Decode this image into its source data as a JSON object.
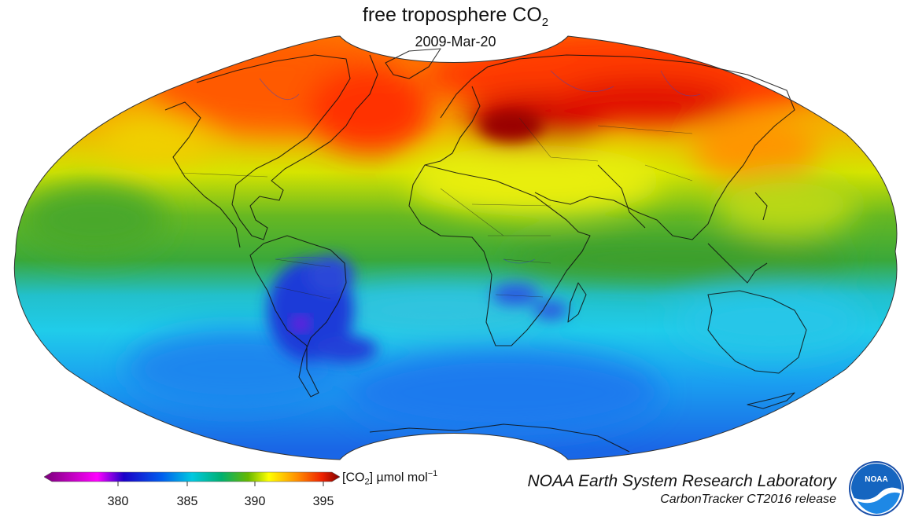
{
  "header": {
    "title_main": "free troposphere CO",
    "title_sub": "2",
    "date": "2009-Mar-20"
  },
  "colorbar": {
    "label_prefix": "[CO",
    "label_sub": "2",
    "label_mid": "] µmol mol",
    "label_sup": "−1",
    "ticks": [
      "380",
      "385",
      "390",
      "395"
    ],
    "colors": [
      "#8c008c",
      "#ff00ff",
      "#2200cc",
      "#0055ee",
      "#00c8e0",
      "#00c080",
      "#55b000",
      "#ffff00",
      "#ff8800",
      "#ee2200",
      "#800000"
    ]
  },
  "credits": {
    "line1": "NOAA Earth System Research Laboratory",
    "line2": "CarbonTracker CT2016 release",
    "logo_text": "NOAA"
  },
  "map": {
    "projection": "hammer-like ellipse",
    "colors": {
      "red": "#ee2200",
      "dark_red": "#b00000",
      "orange": "#ff8800",
      "yellow": "#e8f000",
      "green": "#44aa22",
      "cyan": "#22c8e8",
      "blue": "#1e6eea",
      "purple": "#7722cc"
    }
  }
}
